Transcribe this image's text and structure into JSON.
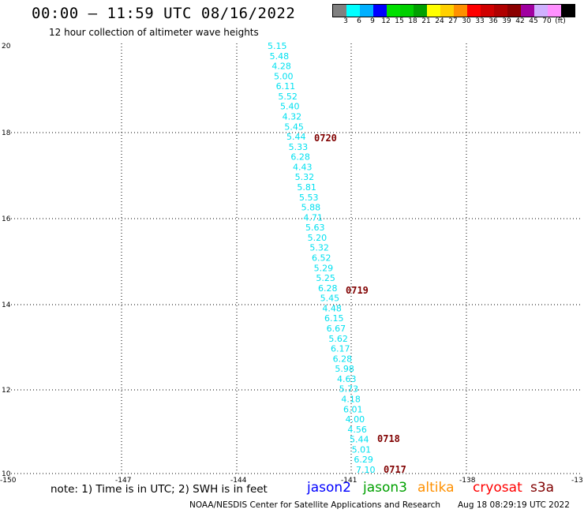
{
  "header": {
    "title": "00:00 – 11:59 UTC 08/16/2022",
    "subtitle": "12 hour collection of altimeter wave heights"
  },
  "legend": {
    "colors": [
      "#808080",
      "#00ffff",
      "#00b0ff",
      "#0000ff",
      "#00e000",
      "#00d000",
      "#00a000",
      "#ffff00",
      "#ffd000",
      "#ff9000",
      "#ff0000",
      "#d00000",
      "#b00000",
      "#8b0000",
      "#a000a0",
      "#d0b0ff",
      "#ff90ff",
      "#000000"
    ],
    "labels": [
      "3",
      "6",
      "9",
      "12",
      "15",
      "18",
      "21",
      "24",
      "27",
      "30",
      "33",
      "36",
      "39",
      "42",
      "45",
      "70",
      "(ft)"
    ]
  },
  "axes": {
    "lon_ticks": [
      "-150",
      "-147",
      "-144",
      "-141",
      "-138",
      "-13"
    ],
    "lat_ticks": [
      "20",
      "18",
      "16",
      "14",
      "12",
      "10"
    ]
  },
  "observations": {
    "color": "#00e0f0",
    "wave_heights_ft": [
      "5.15",
      "5.48",
      "4.28",
      "5.00",
      "6.11",
      "5.52",
      "5.40",
      "4.32",
      "5.45",
      "5.44",
      "5.33",
      "6.28",
      "4.43",
      "5.32",
      "5.81",
      "5.53",
      "5.88",
      "4.71",
      "5.63",
      "5.20",
      "5.32",
      "6.52",
      "5.29",
      "5.25",
      "6.28",
      "5.45",
      "4.48",
      "6.15",
      "6.67",
      "5.62",
      "6.17",
      "6.28",
      "5.98",
      "4.63",
      "5.73",
      "4.18",
      "6.01",
      "4.00",
      "4.56",
      "5.44",
      "5.01",
      "6.29",
      "7.10"
    ]
  },
  "time_labels": {
    "color": "#800000",
    "items": [
      "0720",
      "0719",
      "0718",
      "0717"
    ]
  },
  "footer": {
    "note": "note: 1) Time is in UTC; 2) SWH is in feet",
    "satellites": [
      {
        "name": "jason2",
        "color": "#0000ff"
      },
      {
        "name": "jason3",
        "color": "#00a000"
      },
      {
        "name": "altika",
        "color": "#ff9000"
      },
      {
        "name": "cryosat",
        "color": "#ff0000"
      },
      {
        "name": "s3a",
        "color": "#800000"
      }
    ],
    "credit": "NOAA/NESDIS Center for Satellite Applications and Research",
    "timestamp": "Aug 18 08:29:19 UTC 2022"
  }
}
